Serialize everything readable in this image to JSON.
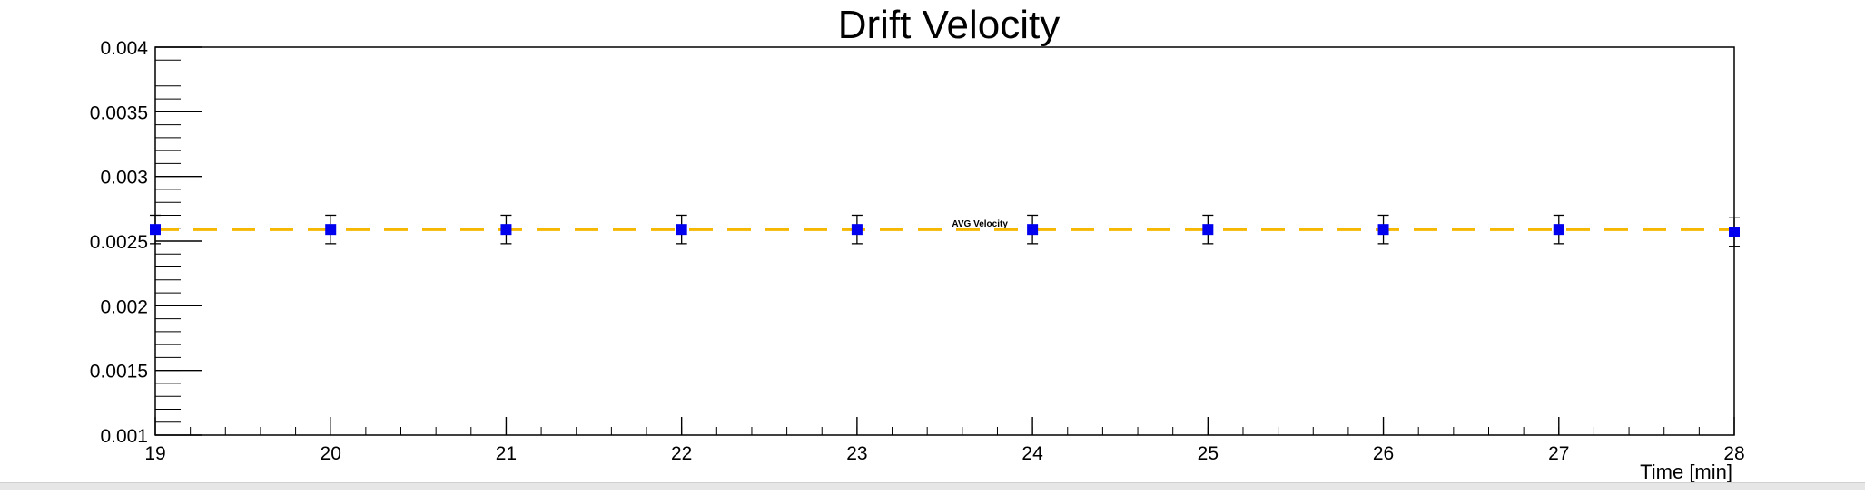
{
  "chart_data": {
    "type": "scatter",
    "title": "Drift Velocity",
    "xlabel": "Time [min]",
    "ylabel": "",
    "xlim": [
      19,
      28
    ],
    "ylim": [
      0.001,
      0.004
    ],
    "x_ticks": [
      "19",
      "20",
      "21",
      "22",
      "23",
      "24",
      "25",
      "26",
      "27",
      "28"
    ],
    "y_ticks": [
      "0.001",
      "0.0015",
      "0.002",
      "0.0025",
      "0.003",
      "0.0035",
      "0.004"
    ],
    "grid": false,
    "series": [
      {
        "x": [
          19,
          20,
          21,
          22,
          23,
          24,
          25,
          26,
          27,
          28
        ],
        "y": [
          0.00259,
          0.00259,
          0.00259,
          0.00259,
          0.00259,
          0.00259,
          0.00259,
          0.00259,
          0.00259,
          0.00257
        ],
        "yerr": [
          0.00011,
          0.00011,
          0.00011,
          0.00011,
          0.00011,
          0.00011,
          0.00011,
          0.00011,
          0.00011,
          0.00011
        ],
        "color": "#0000ee"
      }
    ],
    "reference_line": {
      "label": "AVG Velocity",
      "y": 0.00259,
      "color": "#f5b800",
      "style": "dashed"
    }
  }
}
